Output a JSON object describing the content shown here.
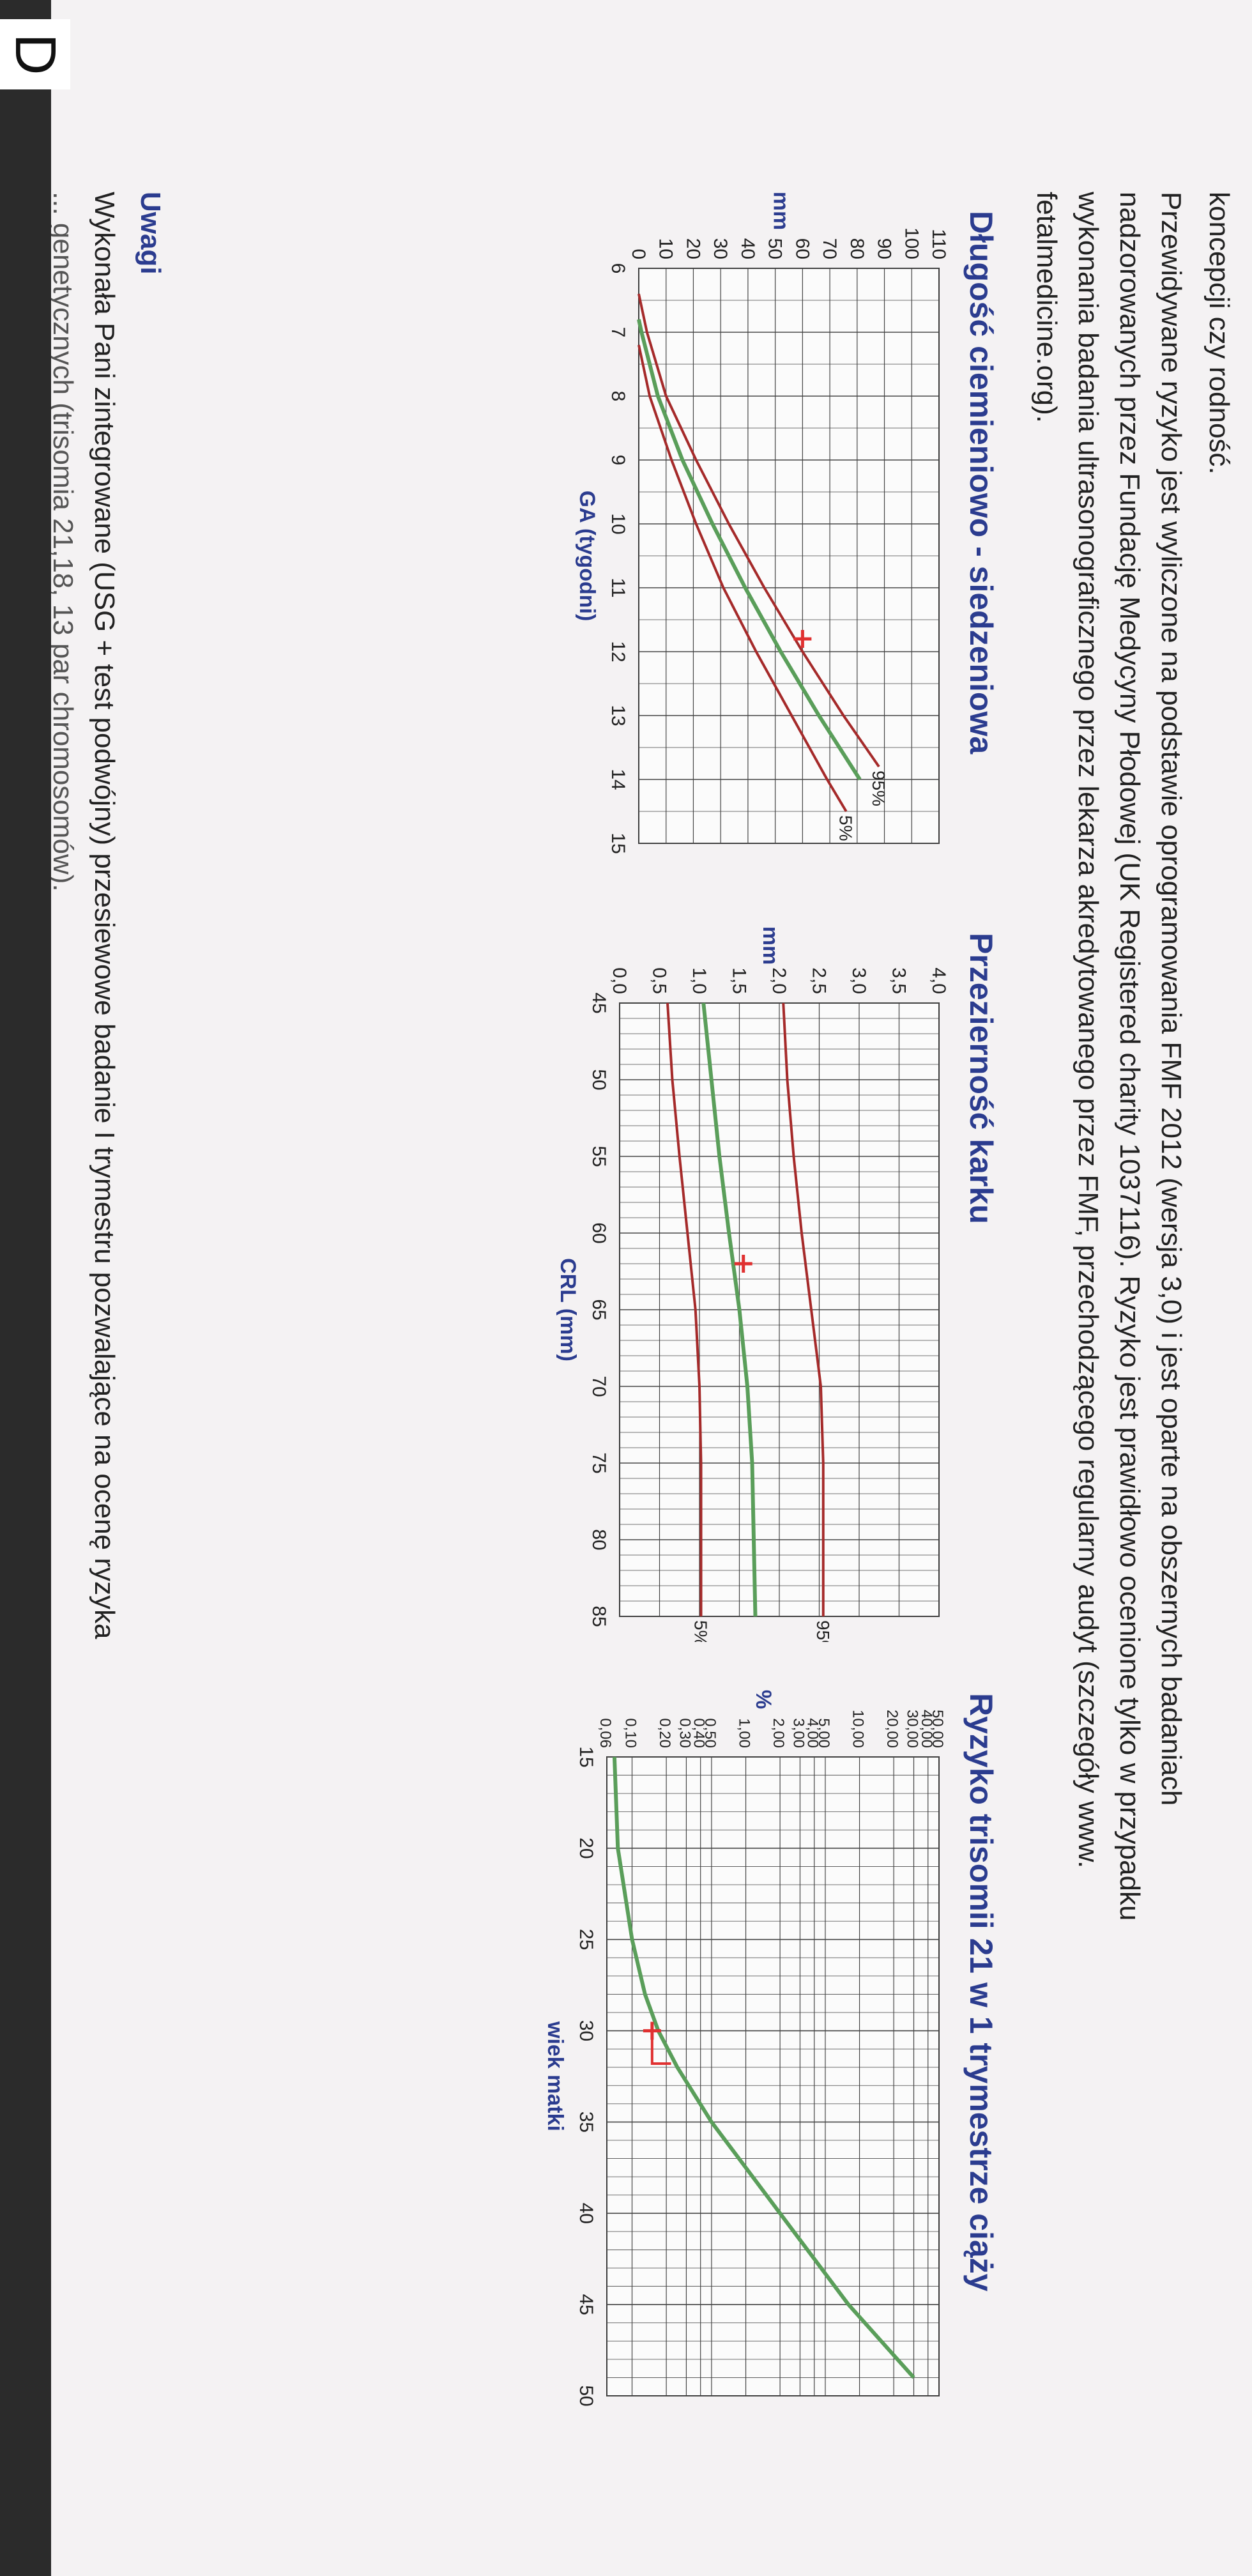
{
  "intro_text": "koncepcji czy rodność.",
  "paragraph_lines": [
    "Przewidywane ryzyko jest wyliczone na podstawie oprogramowania FMF 2012 (wersja 3,0) i jest oparte na obszernych badaniach",
    "nadzorowanych przez Fundację Medycyny Płodowej (UK Registered charity 1037116). Ryzyko jest prawidłowo ocenione tylko w przypadku",
    "wykonania badania ultrasonograficznego przez lekarza akredytowanego przez FMF, przechodzącego regularny audyt (szczegóły www.",
    "fetalmedicine.org)."
  ],
  "notes": {
    "heading": "Uwagi",
    "line": "Wykonała Pani zintegrowane (USG + test podwójny) przesiewowe badanie I trymestru pozwalające na ocenę ryzyka",
    "line2_partial": "... genetycznych (trisomia 21,18, 13 par chromosomów)."
  },
  "corner_letter": "D",
  "colors": {
    "red": "#a52a2a",
    "green": "#5a9e5a",
    "marker": "#e03030",
    "title": "#2b3c8f"
  },
  "chart_data": [
    {
      "type": "line",
      "title": "Długość ciemieniowo - siedzeniowa",
      "xlabel": "GA (tygodni)",
      "ylabel": "mm",
      "x_ticks": [
        6,
        7,
        8,
        9,
        10,
        11,
        12,
        13,
        14,
        15
      ],
      "y_ticks": [
        0,
        10,
        20,
        30,
        40,
        50,
        60,
        70,
        80,
        90,
        100,
        110
      ],
      "xlim": [
        6,
        15
      ],
      "ylim": [
        0,
        110
      ],
      "grid": true,
      "series": [
        {
          "name": "95%",
          "color": "red",
          "x": [
            6.4,
            7,
            8,
            9,
            10,
            11,
            12,
            13,
            13.8
          ],
          "y": [
            0,
            3,
            10,
            21,
            33,
            46,
            60,
            75,
            88
          ]
        },
        {
          "name": "",
          "color": "green",
          "x": [
            6.8,
            7,
            8,
            9,
            10,
            11,
            12,
            13,
            14
          ],
          "y": [
            0,
            1,
            7,
            16,
            27,
            39,
            52,
            66,
            81
          ]
        },
        {
          "name": "5%",
          "color": "red",
          "x": [
            7.2,
            8,
            9,
            10,
            11,
            12,
            13,
            14,
            14.5
          ],
          "y": [
            0,
            4,
            12,
            21,
            31,
            43,
            56,
            69,
            76
          ]
        }
      ],
      "marker": {
        "x": 11.8,
        "y": 60
      }
    },
    {
      "type": "line",
      "title": "Przezierność karku",
      "xlabel": "CRL (mm)",
      "ylabel": "mm",
      "x_ticks": [
        45,
        50,
        55,
        60,
        65,
        70,
        75,
        80,
        85
      ],
      "y_ticks": [
        "0,0",
        "0,5",
        "1,0",
        "1,5",
        "2,0",
        "2,5",
        "3,0",
        "3,5",
        "4,0"
      ],
      "xlim": [
        45,
        85
      ],
      "ylim": [
        0,
        4
      ],
      "grid": true,
      "series": [
        {
          "name": "95%",
          "color": "red",
          "x": [
            45,
            50,
            55,
            60,
            65,
            70,
            75,
            80,
            85
          ],
          "y": [
            2.05,
            2.1,
            2.18,
            2.28,
            2.4,
            2.52,
            2.55,
            2.55,
            2.55
          ]
        },
        {
          "name": "",
          "color": "green",
          "x": [
            45,
            50,
            55,
            60,
            65,
            70,
            75,
            80,
            85
          ],
          "y": [
            1.05,
            1.15,
            1.25,
            1.37,
            1.5,
            1.6,
            1.66,
            1.68,
            1.7
          ]
        },
        {
          "name": "5%",
          "color": "red",
          "x": [
            45,
            50,
            55,
            60,
            65,
            70,
            75,
            80,
            85
          ],
          "y": [
            0.6,
            0.66,
            0.75,
            0.85,
            0.95,
            1.0,
            1.02,
            1.02,
            1.02
          ]
        }
      ],
      "marker": {
        "x": 62,
        "y": 1.55
      }
    },
    {
      "type": "line",
      "title": "Ryzyko trisomii 21 w 1 trymestrze ciąży",
      "xlabel": "wiek matki",
      "ylabel": "%",
      "x_ticks": [
        15,
        20,
        25,
        30,
        35,
        40,
        45,
        50
      ],
      "y_ticks": [
        "0,06",
        "0,10",
        "0,20",
        "0,30",
        "0,40",
        "0,50",
        "1,00",
        "2,00",
        "3,00",
        "4,00",
        "5,00",
        "10,00",
        "20,00",
        "30,00",
        "40,00",
        "50,00"
      ],
      "xlim": [
        15,
        50
      ],
      "ylim": [
        0.06,
        50
      ],
      "log_y": true,
      "grid": true,
      "series": [
        {
          "name": "",
          "color": "green",
          "x": [
            15,
            20,
            25,
            28,
            30,
            32,
            35,
            40,
            45,
            49
          ],
          "y": [
            0.07,
            0.075,
            0.1,
            0.13,
            0.17,
            0.25,
            0.5,
            2,
            8,
            30
          ]
        }
      ],
      "marker": {
        "x": 30,
        "y": 0.15,
        "bracket_x2": 31.8,
        "bracket_y2": 0.22
      }
    }
  ]
}
